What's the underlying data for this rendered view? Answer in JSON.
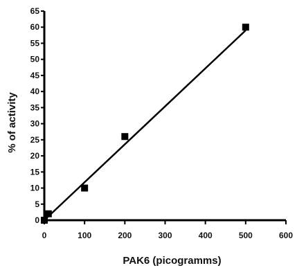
{
  "chart_data": {
    "type": "scatter",
    "title": "",
    "xlabel": "PAK6 (picogramms)",
    "ylabel": "% of activity",
    "xlim": [
      0,
      600
    ],
    "ylim": [
      0,
      65
    ],
    "x_ticks": [
      0,
      100,
      200,
      300,
      400,
      500,
      600
    ],
    "y_ticks": [
      0,
      5,
      10,
      15,
      20,
      25,
      30,
      35,
      40,
      45,
      50,
      55,
      60,
      65
    ],
    "grid": false,
    "legend": "none",
    "series": [
      {
        "marker": "square",
        "color": "#000000",
        "points": [
          {
            "x": 0,
            "y": 0
          },
          {
            "x": 10,
            "y": 2
          },
          {
            "x": 100,
            "y": 10
          },
          {
            "x": 200,
            "y": 26
          },
          {
            "x": 500,
            "y": 60
          }
        ]
      }
    ],
    "fit_line": {
      "x": [
        0,
        500
      ],
      "y": [
        0,
        59
      ]
    }
  }
}
